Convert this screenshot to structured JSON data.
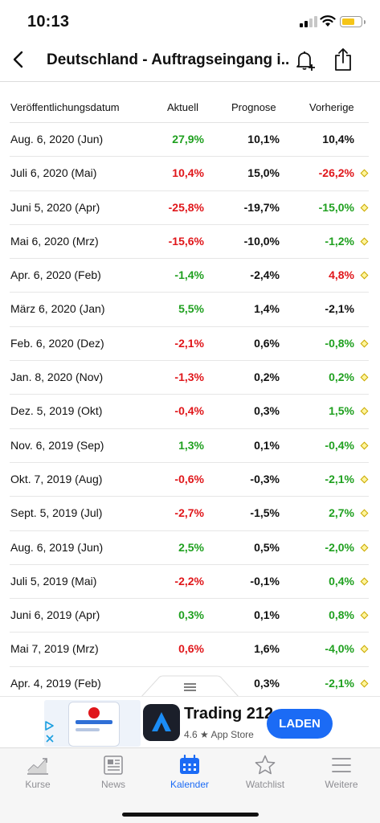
{
  "status_bar": {
    "time": "10:13"
  },
  "header": {
    "title": "Deutschland - Auftragseingang i..."
  },
  "table": {
    "columns": [
      "Veröffentlichungsdatum",
      "Aktuell",
      "Prognose",
      "Vorherige"
    ],
    "rows": [
      {
        "date": "Aug. 6, 2020 (Jun)",
        "actual": "27,9%",
        "forecast": "10,1%",
        "previous": "10,4%",
        "actual_color": "green",
        "previous_color": "dark",
        "revised": false
      },
      {
        "date": "Juli 6, 2020 (Mai)",
        "actual": "10,4%",
        "forecast": "15,0%",
        "previous": "-26,2%",
        "actual_color": "red",
        "previous_color": "red",
        "revised": true
      },
      {
        "date": "Juni 5, 2020 (Apr)",
        "actual": "-25,8%",
        "forecast": "-19,7%",
        "previous": "-15,0%",
        "actual_color": "red",
        "previous_color": "green",
        "revised": true
      },
      {
        "date": "Mai 6, 2020 (Mrz)",
        "actual": "-15,6%",
        "forecast": "-10,0%",
        "previous": "-1,2%",
        "actual_color": "red",
        "previous_color": "green",
        "revised": true
      },
      {
        "date": "Apr. 6, 2020 (Feb)",
        "actual": "-1,4%",
        "forecast": "-2,4%",
        "previous": "4,8%",
        "actual_color": "green",
        "previous_color": "red",
        "revised": true
      },
      {
        "date": "März 6, 2020 (Jan)",
        "actual": "5,5%",
        "forecast": "1,4%",
        "previous": "-2,1%",
        "actual_color": "green",
        "previous_color": "dark",
        "revised": false
      },
      {
        "date": "Feb. 6, 2020 (Dez)",
        "actual": "-2,1%",
        "forecast": "0,6%",
        "previous": "-0,8%",
        "actual_color": "red",
        "previous_color": "green",
        "revised": true
      },
      {
        "date": "Jan. 8, 2020 (Nov)",
        "actual": "-1,3%",
        "forecast": "0,2%",
        "previous": "0,2%",
        "actual_color": "red",
        "previous_color": "green",
        "revised": true
      },
      {
        "date": "Dez. 5, 2019 (Okt)",
        "actual": "-0,4%",
        "forecast": "0,3%",
        "previous": "1,5%",
        "actual_color": "red",
        "previous_color": "green",
        "revised": true
      },
      {
        "date": "Nov. 6, 2019 (Sep)",
        "actual": "1,3%",
        "forecast": "0,1%",
        "previous": "-0,4%",
        "actual_color": "green",
        "previous_color": "green",
        "revised": true
      },
      {
        "date": "Okt. 7, 2019 (Aug)",
        "actual": "-0,6%",
        "forecast": "-0,3%",
        "previous": "-2,1%",
        "actual_color": "red",
        "previous_color": "green",
        "revised": true
      },
      {
        "date": "Sept. 5, 2019 (Jul)",
        "actual": "-2,7%",
        "forecast": "-1,5%",
        "previous": "2,7%",
        "actual_color": "red",
        "previous_color": "green",
        "revised": true
      },
      {
        "date": "Aug. 6, 2019 (Jun)",
        "actual": "2,5%",
        "forecast": "0,5%",
        "previous": "-2,0%",
        "actual_color": "green",
        "previous_color": "green",
        "revised": true
      },
      {
        "date": "Juli 5, 2019 (Mai)",
        "actual": "-2,2%",
        "forecast": "-0,1%",
        "previous": "0,4%",
        "actual_color": "red",
        "previous_color": "green",
        "revised": true
      },
      {
        "date": "Juni 6, 2019 (Apr)",
        "actual": "0,3%",
        "forecast": "0,1%",
        "previous": "0,8%",
        "actual_color": "green",
        "previous_color": "green",
        "revised": true
      },
      {
        "date": "Mai 7, 2019 (Mrz)",
        "actual": "0,6%",
        "forecast": "1,6%",
        "previous": "-4,0%",
        "actual_color": "red",
        "previous_color": "green",
        "revised": true
      },
      {
        "date": "Apr. 4, 2019 (Feb)",
        "actual": "",
        "forecast": "0,3%",
        "previous": "-2,1%",
        "actual_color": "dark",
        "previous_color": "green",
        "revised": true
      }
    ]
  },
  "ad": {
    "app_name": "Trading 212",
    "rating_line": "4.6 ★ App Store",
    "button": "LADEN"
  },
  "tabbar": {
    "tabs": [
      {
        "label": "Kurse",
        "icon": "chart-icon",
        "active": false
      },
      {
        "label": "News",
        "icon": "news-icon",
        "active": false
      },
      {
        "label": "Kalender",
        "icon": "calendar-icon",
        "active": true
      },
      {
        "label": "Watchlist",
        "icon": "star-icon",
        "active": false
      },
      {
        "label": "Weitere",
        "icon": "menu-icon",
        "active": false
      }
    ]
  },
  "colors": {
    "positive": "#1fa01f",
    "negative": "#e0161a",
    "accent": "#1b6bf5"
  }
}
